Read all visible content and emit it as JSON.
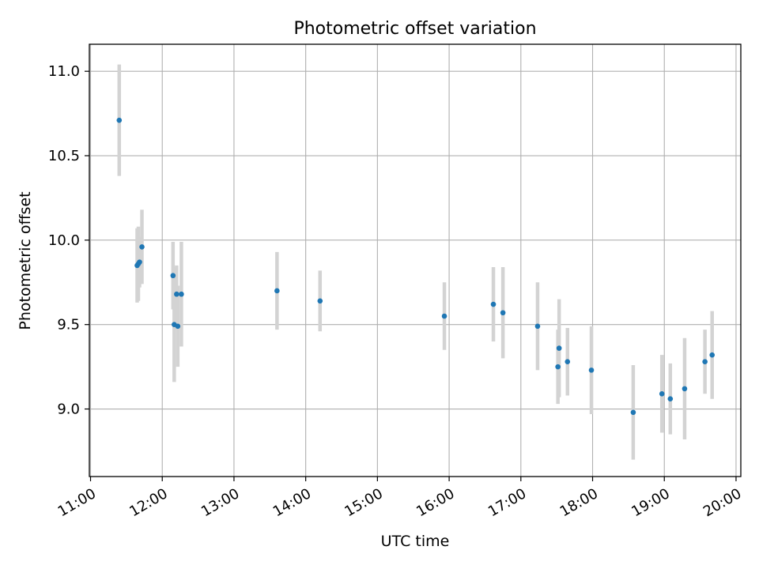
{
  "chart_data": {
    "type": "scatter",
    "title": "Photometric offset variation",
    "xlabel": "UTC time",
    "ylabel": "Photometric offset",
    "x_axis": {
      "type": "time",
      "range": [
        "10:59",
        "20:04"
      ],
      "ticks": [
        "11:00",
        "12:00",
        "13:00",
        "14:00",
        "15:00",
        "16:00",
        "17:00",
        "18:00",
        "19:00",
        "20:00"
      ]
    },
    "y_axis": {
      "range": [
        8.6,
        11.16
      ],
      "ticks": [
        9.0,
        9.5,
        10.0,
        10.5,
        11.0
      ],
      "tick_labels": [
        "9.0",
        "9.5",
        "10.0",
        "10.5",
        "11.0"
      ]
    },
    "grid": true,
    "legend": "none",
    "marker_color": "#1f77b4",
    "errorbar_color": "#d3d3d3",
    "points": [
      {
        "time": "11:24",
        "y": 10.71,
        "err": 0.33
      },
      {
        "time": "11:39",
        "y": 9.85,
        "err": 0.22
      },
      {
        "time": "11:40",
        "y": 9.86,
        "err": 0.22
      },
      {
        "time": "11:41",
        "y": 9.87,
        "err": 0.15
      },
      {
        "time": "11:43",
        "y": 9.96,
        "err": 0.22
      },
      {
        "time": "12:09",
        "y": 9.79,
        "err": 0.2
      },
      {
        "time": "12:10",
        "y": 9.5,
        "err": 0.34
      },
      {
        "time": "12:12",
        "y": 9.68,
        "err": 0.17
      },
      {
        "time": "12:13",
        "y": 9.49,
        "err": 0.24
      },
      {
        "time": "12:16",
        "y": 9.68,
        "err": 0.31
      },
      {
        "time": "13:36",
        "y": 9.7,
        "err": 0.23
      },
      {
        "time": "14:12",
        "y": 9.64,
        "err": 0.18
      },
      {
        "time": "15:56",
        "y": 9.55,
        "err": 0.2
      },
      {
        "time": "16:37",
        "y": 9.62,
        "err": 0.22
      },
      {
        "time": "16:45",
        "y": 9.57,
        "err": 0.27
      },
      {
        "time": "17:14",
        "y": 9.49,
        "err": 0.26
      },
      {
        "time": "17:31",
        "y": 9.25,
        "err": 0.22
      },
      {
        "time": "17:32",
        "y": 9.36,
        "err": 0.29
      },
      {
        "time": "17:39",
        "y": 9.28,
        "err": 0.2
      },
      {
        "time": "17:59",
        "y": 9.23,
        "err": 0.26
      },
      {
        "time": "18:34",
        "y": 8.98,
        "err": 0.28
      },
      {
        "time": "18:58",
        "y": 9.09,
        "err": 0.23
      },
      {
        "time": "19:05",
        "y": 9.06,
        "err": 0.21
      },
      {
        "time": "19:17",
        "y": 9.12,
        "err": 0.3
      },
      {
        "time": "19:34",
        "y": 9.28,
        "err": 0.19
      },
      {
        "time": "19:40",
        "y": 9.32,
        "err": 0.26
      }
    ]
  }
}
